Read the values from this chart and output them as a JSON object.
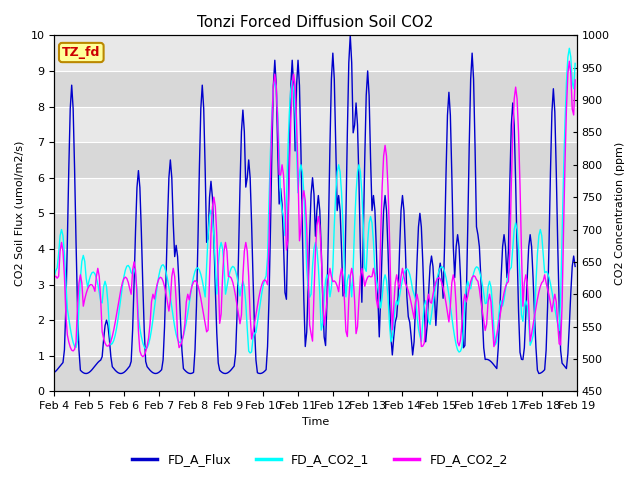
{
  "title": "Tonzi Forced Diffusion Soil CO2",
  "xlabel": "Time",
  "ylabel_left": "CO2 Soil Flux (umol/m2/s)",
  "ylabel_right": "CO2 Concentration (ppm)",
  "ylim_left": [
    0.0,
    10.0
  ],
  "ylim_right": [
    450,
    1000
  ],
  "xtick_labels": [
    "Feb 4",
    "Feb 5",
    "Feb 6",
    "Feb 7",
    "Feb 8",
    "Feb 9",
    "Feb 10",
    "Feb 11",
    "Feb 12",
    "Feb 13",
    "Feb 14",
    "Feb 15",
    "Feb 16",
    "Feb 17",
    "Feb 18",
    "Feb 19"
  ],
  "xtick_positions": [
    0,
    24,
    48,
    72,
    96,
    120,
    144,
    168,
    192,
    216,
    240,
    264,
    288,
    312,
    336,
    360
  ],
  "color_flux": "#0000CC",
  "color_co2_1": "#00FFFF",
  "color_co2_2": "#FF00FF",
  "legend_labels": [
    "FD_A_Flux",
    "FD_A_CO2_1",
    "FD_A_CO2_2"
  ],
  "tag_text": "TZ_fd",
  "tag_facecolor": "#FFFF99",
  "tag_edgecolor": "#BB8800",
  "tag_textcolor": "#CC0000",
  "plot_bg": "#E8E8E8",
  "band_light": "#DCDCDC",
  "band_dark": "#C8C8C8",
  "grid_color": "#FFFFFF",
  "fig_bg": "#FFFFFF",
  "title_fontsize": 11,
  "label_fontsize": 8,
  "tick_fontsize": 8,
  "legend_fontsize": 9,
  "n_points": 360,
  "linewidth_flux": 1.0,
  "linewidth_co2": 1.0
}
